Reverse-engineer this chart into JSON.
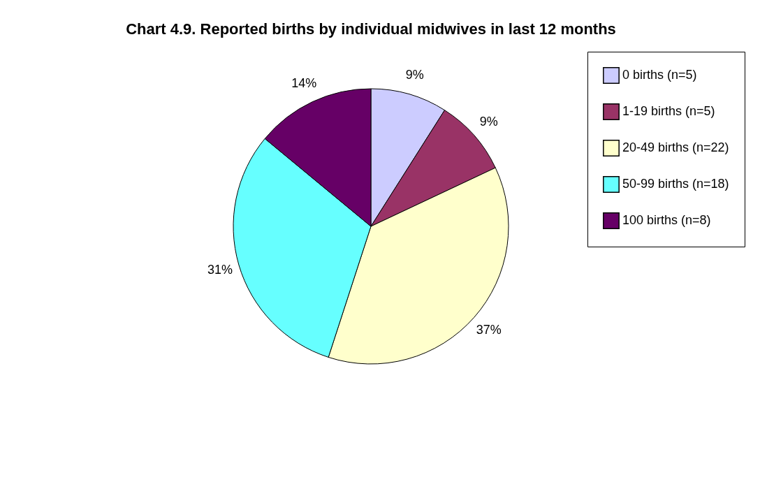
{
  "chart_data": {
    "type": "pie",
    "title": "Chart 4.9. Reported births by individual midwives in last 12 months",
    "categories": [
      "0 births (n=5)",
      "1-19 births (n=5)",
      "20-49 births (n=22)",
      "50-99 births (n=18)",
      "100 births (n=8)"
    ],
    "values": [
      9,
      9,
      37,
      31,
      14
    ],
    "colors": [
      "#ccccff",
      "#993366",
      "#ffffcc",
      "#66ffff",
      "#660066"
    ],
    "value_labels": [
      "9%",
      "9%",
      "37%",
      "31%",
      "14%"
    ],
    "legend": "right"
  }
}
